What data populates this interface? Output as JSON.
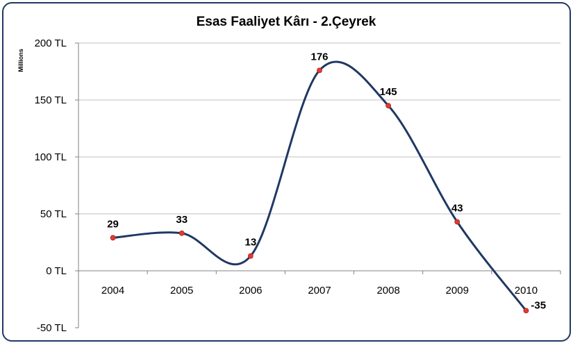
{
  "chart_data": {
    "type": "line",
    "title": "Esas Faaliyet Kârı - 2.Çeyrek",
    "units_label": "Millions",
    "categories": [
      "2004",
      "2005",
      "2006",
      "2007",
      "2008",
      "2009",
      "2010"
    ],
    "series": [
      {
        "values": [
          29,
          33,
          13,
          176,
          145,
          43,
          -35
        ],
        "data_labels": [
          "29",
          "33",
          "13",
          "176",
          "145",
          "43",
          "-35"
        ]
      }
    ],
    "y_ticks": [
      "-50 TL",
      "0 TL",
      "50 TL",
      "100 TL",
      "150 TL",
      "200 TL"
    ],
    "y_tick_values": [
      -50,
      0,
      50,
      100,
      150,
      200
    ],
    "ylim": [
      -50,
      200
    ],
    "smoothed": true,
    "grid": "horizontal",
    "legend": "none"
  },
  "colors": {
    "line": "#1f3864",
    "marker": "#e03c31",
    "grid": "#c0c0c0",
    "frame": "#1f3864"
  }
}
